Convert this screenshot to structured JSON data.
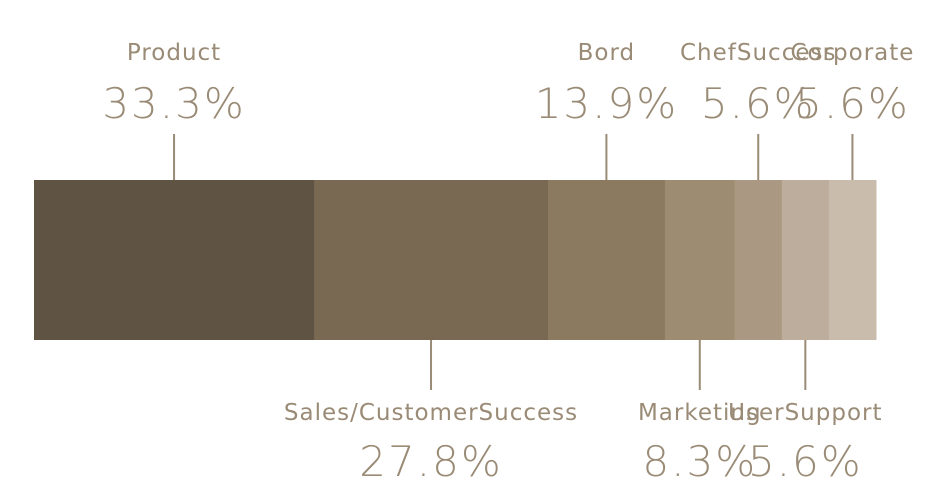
{
  "chart_data": {
    "type": "bar",
    "stacked": true,
    "orientation": "horizontal",
    "categories": [
      "Product",
      "Sales/CustomerSuccess",
      "Bord",
      "Marketing",
      "ChefSuccess",
      "UserSupport",
      "Corporate"
    ],
    "values": [
      33.3,
      27.8,
      13.9,
      8.3,
      5.6,
      5.6,
      5.6
    ],
    "value_labels": [
      "33.3%",
      "27.8%",
      "13.9%",
      "8.3%",
      "5.6%",
      "5.6%",
      "5.6%"
    ],
    "label_positions": [
      "top",
      "bottom",
      "top",
      "bottom",
      "top",
      "bottom",
      "top"
    ],
    "colors": [
      "#5f5443",
      "#796852",
      "#8b7a5f",
      "#9e8c72",
      "#aa9883",
      "#bcad9c",
      "#cabcad"
    ],
    "label_color": "#9a8b76",
    "grid": false,
    "legend": "none"
  }
}
